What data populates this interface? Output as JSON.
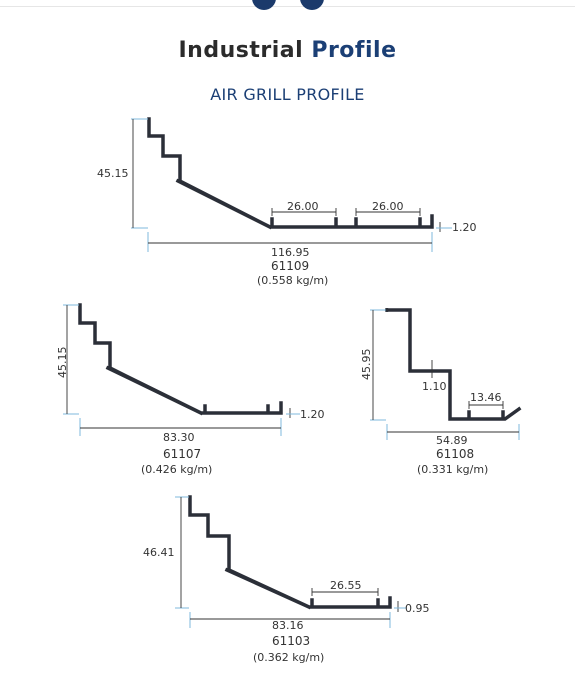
{
  "header": {
    "title_main": "Industrial",
    "title_accent": "Profile",
    "subtitle": "AIR GRILL PROFILE"
  },
  "profiles": [
    {
      "code": "61109",
      "weight": "(0.558 kg/m)",
      "height": "45.15",
      "width": "116.95",
      "thickness": "1.20",
      "spacing_1": "26.00",
      "spacing_2": "26.00"
    },
    {
      "code": "61107",
      "weight": "(0.426 kg/m)",
      "height": "45.15",
      "width": "83.30",
      "thickness": "1.20"
    },
    {
      "code": "61108",
      "weight": "(0.331 kg/m)",
      "height": "45.95",
      "width": "54.89",
      "step": "1.10",
      "spacing_1": "13.46"
    },
    {
      "code": "61103",
      "weight": "(0.362 kg/m)",
      "height": "46.41",
      "width": "83.16",
      "thickness": "0.95",
      "spacing_1": "26.55"
    }
  ],
  "colors": {
    "profile": "#2b2f38",
    "dimension": "#7fb8dc",
    "accent": "#1b3f75"
  }
}
